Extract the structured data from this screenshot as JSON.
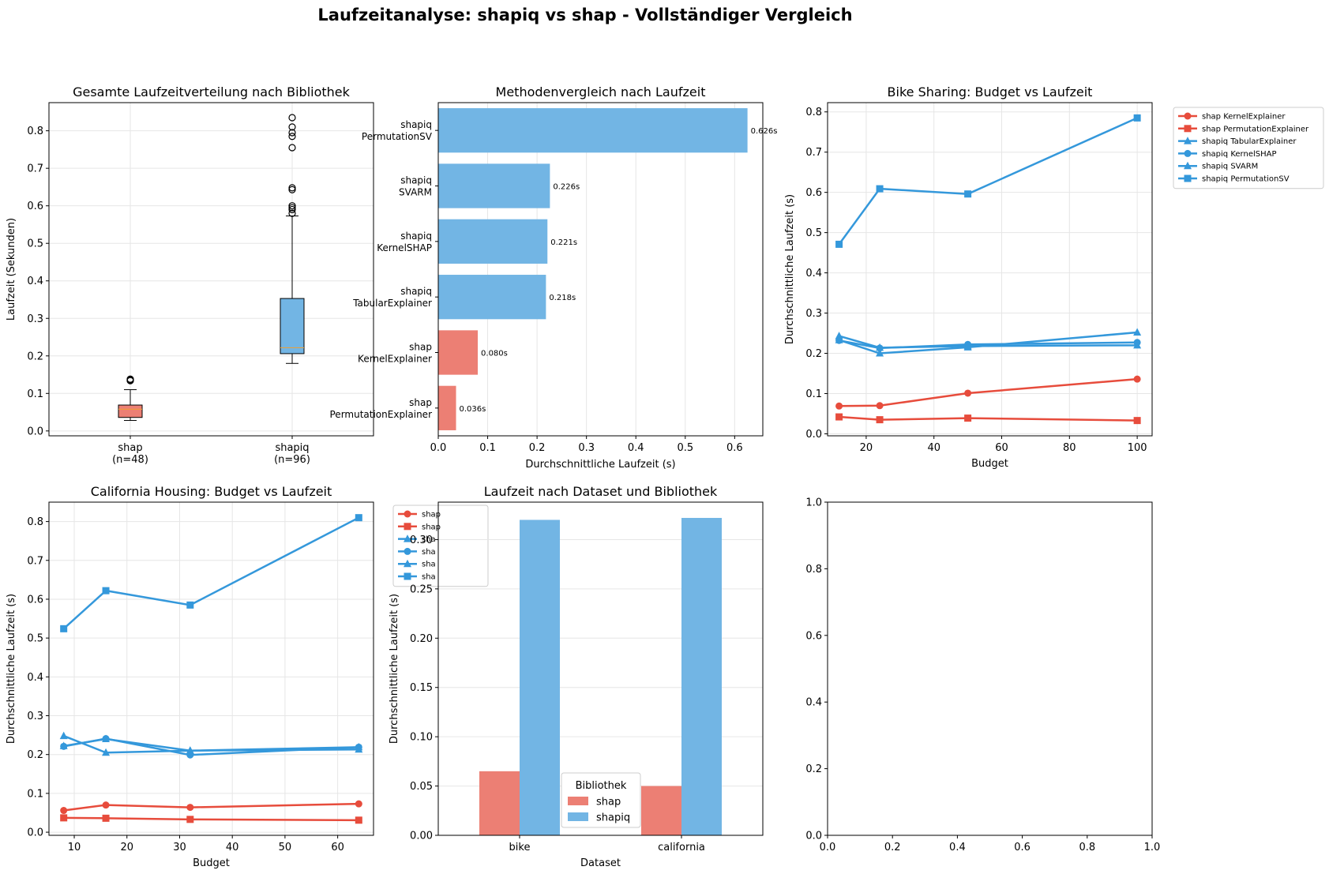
{
  "suptitle": "Laufzeitanalyse: shapiq vs shap - Vollständiger Vergleich",
  "colors": {
    "shap": "#E74C3C",
    "shapiq": "#3498DB",
    "shap_fill": "#EC7F74",
    "shapiq_fill": "#72B5E4",
    "grid": "#e6e6e6",
    "median": "#F0A030"
  },
  "chart_data": [
    {
      "id": "box",
      "type": "box",
      "title": "Gesamte Laufzeitverteilung nach Bibliothek",
      "ylabel": "Laufzeit (Sekunden)",
      "ylim": [
        -0.013,
        0.875
      ],
      "yticks": [
        0.0,
        0.1,
        0.2,
        0.3,
        0.4,
        0.5,
        0.6,
        0.7,
        0.8
      ],
      "categories": [
        "shap\n(n=48)",
        "shapiq\n(n=96)"
      ],
      "boxes": [
        {
          "name": "shap",
          "whislo": 0.028,
          "q1": 0.036,
          "med": 0.058,
          "q3": 0.069,
          "whishi": 0.11,
          "fliers": [
            0.134,
            0.136,
            0.138
          ]
        },
        {
          "name": "shapiq",
          "whislo": 0.18,
          "q1": 0.206,
          "med": 0.222,
          "q3": 0.353,
          "whishi": 0.573,
          "fliers": [
            0.58,
            0.59,
            0.595,
            0.6,
            0.643,
            0.648,
            0.755,
            0.785,
            0.795,
            0.81,
            0.835
          ]
        }
      ]
    },
    {
      "id": "hbar",
      "type": "bar",
      "orientation": "horizontal",
      "title": "Methodenvergleich nach Laufzeit",
      "xlabel": "Durchschnittliche Laufzeit (s)",
      "xlim": [
        0,
        0.657
      ],
      "xticks": [
        0.0,
        0.1,
        0.2,
        0.3,
        0.4,
        0.5,
        0.6
      ],
      "bars": [
        {
          "label": "shapiq\nPermutationSV",
          "value": 0.626,
          "value_label": "0.626s",
          "lib": "shapiq"
        },
        {
          "label": "shapiq\nSVARM",
          "value": 0.226,
          "value_label": "0.226s",
          "lib": "shapiq"
        },
        {
          "label": "shapiq\nKernelSHAP",
          "value": 0.221,
          "value_label": "0.221s",
          "lib": "shapiq"
        },
        {
          "label": "shapiq\nTabularExplainer",
          "value": 0.218,
          "value_label": "0.218s",
          "lib": "shapiq"
        },
        {
          "label": "shap\nKernelExplainer",
          "value": 0.08,
          "value_label": "0.080s",
          "lib": "shap"
        },
        {
          "label": "shap\nPermutationExplainer",
          "value": 0.036,
          "value_label": "0.036s",
          "lib": "shap"
        }
      ]
    },
    {
      "id": "bike",
      "type": "line",
      "title": "Bike Sharing: Budget vs Laufzeit",
      "xlabel": "Budget",
      "ylabel": "Durchschnittliche Laufzeit (s)",
      "xlim": [
        8.6,
        104.4
      ],
      "ylim": [
        -0.005,
        0.823
      ],
      "xticks": [
        20,
        40,
        60,
        80,
        100
      ],
      "yticks": [
        0.0,
        0.1,
        0.2,
        0.3,
        0.4,
        0.5,
        0.6,
        0.7,
        0.8
      ],
      "x": [
        12,
        24,
        50,
        100
      ],
      "series": [
        {
          "name": "shap KernelExplainer",
          "marker": "o",
          "lib": "shap",
          "values": [
            0.069,
            0.07,
            0.101,
            0.136
          ]
        },
        {
          "name": "shap PermutationExplainer",
          "marker": "s",
          "lib": "shap",
          "values": [
            0.042,
            0.035,
            0.039,
            0.033
          ]
        },
        {
          "name": "shapiq TabularExplainer",
          "marker": "^",
          "lib": "shapiq",
          "values": [
            0.233,
            0.2,
            0.215,
            0.252
          ]
        },
        {
          "name": "shapiq KernelSHAP",
          "marker": "o",
          "lib": "shapiq",
          "values": [
            0.232,
            0.213,
            0.222,
            0.227
          ]
        },
        {
          "name": "shapiq SVARM",
          "marker": "^",
          "lib": "shapiq",
          "values": [
            0.243,
            0.214,
            0.218,
            0.22
          ]
        },
        {
          "name": "shapiq PermutationSV",
          "marker": "s",
          "lib": "shapiq",
          "values": [
            0.471,
            0.609,
            0.596,
            0.785
          ]
        }
      ]
    },
    {
      "id": "cal",
      "type": "line",
      "title": "California Housing: Budget vs Laufzeit",
      "xlabel": "Budget",
      "ylabel": "Durchschnittliche Laufzeit (s)",
      "xlim": [
        5.2,
        66.8
      ],
      "ylim": [
        -0.008,
        0.85
      ],
      "xticks": [
        10,
        20,
        30,
        40,
        50,
        60
      ],
      "yticks": [
        0.0,
        0.1,
        0.2,
        0.3,
        0.4,
        0.5,
        0.6,
        0.7,
        0.8
      ],
      "x": [
        8,
        16,
        32,
        64
      ],
      "legend_labels": [
        "shap",
        "shap",
        "sha",
        "sha",
        "sha",
        "sha"
      ],
      "series": [
        {
          "name": "shap KernelExplainer",
          "marker": "o",
          "lib": "shap",
          "values": [
            0.056,
            0.07,
            0.064,
            0.073
          ]
        },
        {
          "name": "shap PermutationExplainer",
          "marker": "s",
          "lib": "shap",
          "values": [
            0.037,
            0.036,
            0.033,
            0.031
          ]
        },
        {
          "name": "shapiq TabularExplainer",
          "marker": "^",
          "lib": "shapiq",
          "values": [
            0.222,
            0.24,
            0.21,
            0.219
          ]
        },
        {
          "name": "shapiq KernelSHAP",
          "marker": "o",
          "lib": "shapiq",
          "values": [
            0.221,
            0.241,
            0.199,
            0.219
          ]
        },
        {
          "name": "shapiq SVARM",
          "marker": "^",
          "lib": "shapiq",
          "values": [
            0.248,
            0.205,
            0.21,
            0.213
          ]
        },
        {
          "name": "shapiq PermutationSV",
          "marker": "s",
          "lib": "shapiq",
          "values": [
            0.524,
            0.622,
            0.585,
            0.81
          ]
        }
      ]
    },
    {
      "id": "grouped",
      "type": "bar",
      "title": "Laufzeit nach Dataset und Bibliothek",
      "xlabel": "Dataset",
      "ylabel": "Durchschnittliche Laufzeit (s)",
      "ylim": [
        0,
        0.338
      ],
      "yticks": [
        0.0,
        0.05,
        0.1,
        0.15,
        0.2,
        0.25,
        0.3
      ],
      "ytick_labels": [
        "0.00",
        "0.05",
        "0.10",
        "0.15",
        "0.20",
        "0.25",
        "0.30"
      ],
      "categories": [
        "bike",
        "california"
      ],
      "series": [
        {
          "name": "shap",
          "values": [
            0.065,
            0.05
          ]
        },
        {
          "name": "shapiq",
          "values": [
            0.32,
            0.322
          ]
        }
      ],
      "legend_title": "Bibliothek"
    },
    {
      "id": "empty",
      "type": "empty",
      "xlim": [
        0,
        1
      ],
      "ylim": [
        0,
        1
      ],
      "xticks": [
        0.0,
        0.2,
        0.4,
        0.6,
        0.8,
        1.0
      ],
      "yticks": [
        0.0,
        0.2,
        0.4,
        0.6,
        0.8,
        1.0
      ],
      "xtick_labels": [
        "0.0",
        "0.2",
        "0.4",
        "0.6",
        "0.8",
        "1.0"
      ],
      "ytick_labels": [
        "0.0",
        "0.2",
        "0.4",
        "0.6",
        "0.8",
        "1.0"
      ]
    }
  ]
}
